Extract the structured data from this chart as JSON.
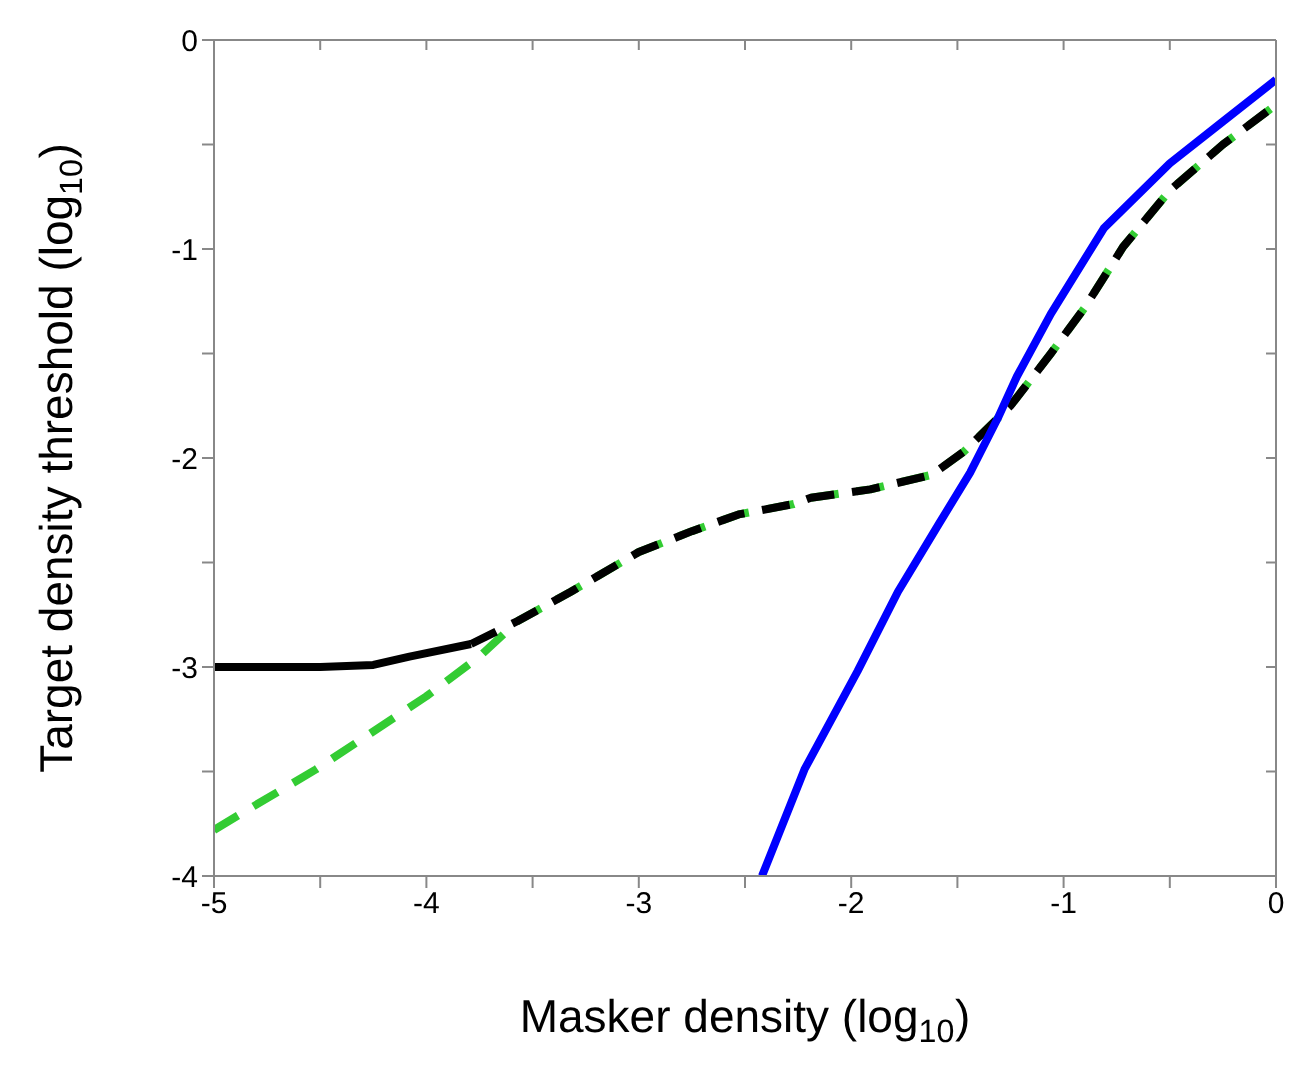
{
  "chart_data": {
    "type": "line",
    "xlabel": "Masker density (log$_{10}$)",
    "ylabel": "Target density threshold (log$_{10}$)",
    "xlim": [
      -5,
      0
    ],
    "ylim": [
      -4,
      0
    ],
    "xticks": [
      -5,
      {
        "value": -4.5,
        "label": null
      },
      -4,
      {
        "value": -3.5,
        "label": null
      },
      -3,
      {
        "value": -2.5,
        "label": null
      },
      -2,
      {
        "value": -1.5,
        "label": null
      },
      -1,
      {
        "value": -0.5,
        "label": null
      },
      0
    ],
    "yticks": [
      -4,
      {
        "value": -3.5,
        "label": null
      },
      -3,
      {
        "value": -2.5,
        "label": null
      },
      -2,
      {
        "value": -1.5,
        "label": null
      },
      -1,
      {
        "value": -0.5,
        "label": null
      },
      0
    ],
    "legend": false,
    "marker": "none",
    "series": [
      {
        "color": "#33cc33",
        "line_style": "dashed",
        "x": [
          -5,
          -4.87,
          -4.52,
          -4,
          -3.75,
          -3.57,
          -3.32,
          -3,
          -2.75,
          -2.53,
          -2.27,
          -2.19,
          -1.91,
          -1.62,
          -1.47,
          -1.34,
          -1.25,
          -1.06,
          -0.9,
          -0.72,
          -0.5,
          -0.25,
          0
        ],
        "values": [
          -3.78,
          -3.7,
          -3.49,
          -3.14,
          -2.95,
          -2.78,
          -2.64,
          -2.45,
          -2.35,
          -2.27,
          -2.22,
          -2.19,
          -2.15,
          -2.08,
          -1.97,
          -1.84,
          -1.75,
          -1.5,
          -1.28,
          -0.99,
          -0.72,
          -0.5,
          -0.31
        ]
      },
      {
        "color": "#000000",
        "line_style": "solid",
        "x": [
          -5,
          -4.5,
          -4.25,
          -4.08,
          -3.79
        ],
        "values": [
          -3.0,
          -3.0,
          -2.99,
          -2.95,
          -2.89
        ]
      },
      {
        "color": "#000000",
        "line_style": "dashed",
        "x": [
          -3.79,
          -3.57,
          -3.32,
          -3,
          -2.75,
          -2.53,
          -2.27,
          -2.19,
          -1.91,
          -1.62,
          -1.47,
          -1.34,
          -1.25,
          -1.06,
          -0.9,
          -0.72,
          -0.5,
          -0.25,
          0
        ],
        "values": [
          -2.89,
          -2.78,
          -2.64,
          -2.45,
          -2.35,
          -2.27,
          -2.22,
          -2.19,
          -2.15,
          -2.08,
          -1.97,
          -1.84,
          -1.75,
          -1.5,
          -1.28,
          -0.99,
          -0.72,
          -0.5,
          -0.31
        ]
      },
      {
        "color": "#0000ff",
        "line_style": "solid",
        "x": [
          -2.42,
          -2.22,
          -1.97,
          -1.78,
          -1.59,
          -1.44,
          -1.31,
          -1.22,
          -1.06,
          -0.81,
          -0.5,
          -0.25,
          0
        ],
        "values": [
          -4.0,
          -3.49,
          -3.02,
          -2.64,
          -2.32,
          -2.07,
          -1.81,
          -1.61,
          -1.31,
          -0.9,
          -0.59,
          -0.39,
          -0.19
        ]
      }
    ]
  }
}
